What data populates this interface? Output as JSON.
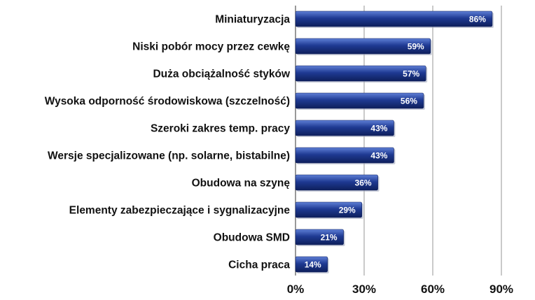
{
  "chart_data": {
    "type": "bar",
    "orientation": "horizontal",
    "categories": [
      "Miniaturyzacja",
      "Niski pobór mocy przez cewkę",
      "Duża obciążalność styków",
      "Wysoka odporność środowiskowa (szczelność)",
      "Szeroki zakres temp. pracy",
      "Wersje specjalizowane (np. solarne, bistabilne)",
      "Obudowa na szynę",
      "Elementy zabezpieczające i sygnalizacyjne",
      "Obudowa SMD",
      "Cicha praca"
    ],
    "values": [
      86,
      59,
      57,
      56,
      43,
      43,
      36,
      29,
      21,
      14
    ],
    "data_labels": [
      "86%",
      "59%",
      "57%",
      "56%",
      "43%",
      "43%",
      "36%",
      "29%",
      "21%",
      "14%"
    ],
    "x_ticks": [
      "0%",
      "30%",
      "60%",
      "90%"
    ],
    "x_tick_values": [
      0,
      30,
      60,
      90
    ],
    "xlim": [
      0,
      90
    ],
    "title": "",
    "xlabel": "",
    "ylabel": "",
    "grid": true,
    "legend": "none",
    "bar_color": "#1f3a93",
    "bar_highlight": "#5f7fd6",
    "bar_shadow": "#0e1f5c"
  }
}
